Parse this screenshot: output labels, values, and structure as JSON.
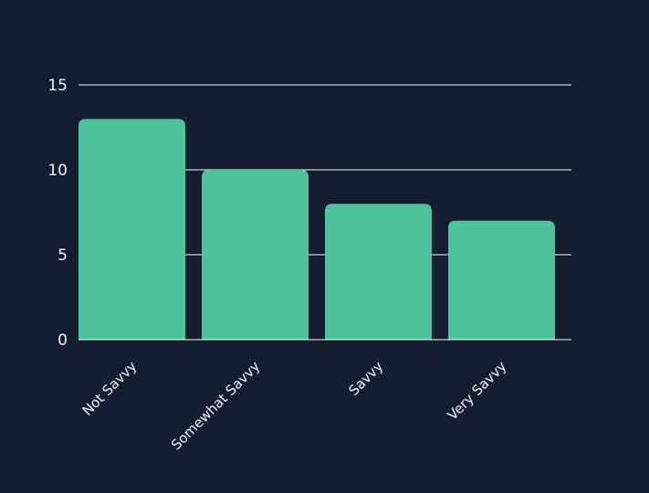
{
  "chart_data": {
    "type": "bar",
    "categories": [
      "Not Savvy",
      "Somewhat Savvy",
      "Savvy",
      "Very Savvy"
    ],
    "values": [
      13,
      10,
      8,
      7
    ],
    "title": "",
    "xlabel": "",
    "ylabel": "",
    "ylim": [
      0,
      15
    ],
    "yticks": [
      "0",
      "5",
      "10",
      "15"
    ],
    "grid": true,
    "legend": "none"
  },
  "colors": {
    "background": "#141e30",
    "bar": "#4fc39c",
    "grid": "#ffffff",
    "text": "#f2f4f7"
  }
}
